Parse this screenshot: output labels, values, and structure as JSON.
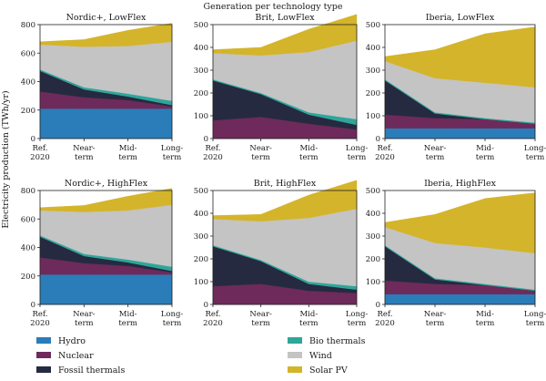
{
  "figure": {
    "title": "Generation per technology type",
    "ylabel": "Electricity production (TWh/yr)"
  },
  "categories": [
    [
      "Ref.",
      "2020"
    ],
    [
      "Near-",
      "term"
    ],
    [
      "Mid-",
      "term"
    ],
    [
      "Long-",
      "term"
    ]
  ],
  "legend": [
    {
      "name": "Hydro",
      "color": "#2a7db8"
    },
    {
      "name": "Nuclear",
      "color": "#6e2a5a"
    },
    {
      "name": "Fossil thermals",
      "color": "#252a40"
    },
    {
      "name": "Bio thermals",
      "color": "#2ea69a"
    },
    {
      "name": "Wind",
      "color": "#c4c4c4"
    },
    {
      "name": "Solar PV",
      "color": "#d4b42a"
    }
  ],
  "chart_data": [
    {
      "type": "area",
      "title": "Nordic+, LowFlex",
      "ylim": [
        0,
        800
      ],
      "yticks": [
        0,
        200,
        400,
        600,
        800
      ],
      "series": [
        {
          "name": "Hydro",
          "values": [
            210,
            210,
            210,
            210
          ]
        },
        {
          "name": "Nuclear",
          "values": [
            120,
            80,
            60,
            15
          ]
        },
        {
          "name": "Fossil thermals",
          "values": [
            145,
            55,
            25,
            10
          ]
        },
        {
          "name": "Bio thermals",
          "values": [
            10,
            15,
            20,
            30
          ]
        },
        {
          "name": "Wind",
          "values": [
            175,
            285,
            335,
            415
          ]
        },
        {
          "name": "Solar PV",
          "values": [
            20,
            50,
            110,
            130
          ]
        }
      ]
    },
    {
      "type": "area",
      "title": "Brit, LowFlex",
      "ylim": [
        0,
        500
      ],
      "yticks": [
        0,
        100,
        200,
        300,
        400,
        500
      ],
      "series": [
        {
          "name": "Hydro",
          "values": [
            0,
            0,
            0,
            0
          ]
        },
        {
          "name": "Nuclear",
          "values": [
            80,
            95,
            65,
            40
          ]
        },
        {
          "name": "Fossil thermals",
          "values": [
            175,
            100,
            40,
            20
          ]
        },
        {
          "name": "Bio thermals",
          "values": [
            5,
            5,
            10,
            25
          ]
        },
        {
          "name": "Wind",
          "values": [
            115,
            165,
            265,
            345
          ]
        },
        {
          "name": "Solar PV",
          "values": [
            15,
            35,
            100,
            115
          ]
        }
      ]
    },
    {
      "type": "area",
      "title": "Iberia, LowFlex",
      "ylim": [
        0,
        500
      ],
      "yticks": [
        0,
        100,
        200,
        300,
        400,
        500
      ],
      "series": [
        {
          "name": "Hydro",
          "values": [
            45,
            45,
            45,
            45
          ]
        },
        {
          "name": "Nuclear",
          "values": [
            60,
            45,
            40,
            20
          ]
        },
        {
          "name": "Fossil thermals",
          "values": [
            150,
            20,
            0,
            0
          ]
        },
        {
          "name": "Bio thermals",
          "values": [
            5,
            5,
            5,
            5
          ]
        },
        {
          "name": "Wind",
          "values": [
            80,
            150,
            155,
            155
          ]
        },
        {
          "name": "Solar PV",
          "values": [
            20,
            125,
            215,
            265
          ]
        }
      ]
    },
    {
      "type": "area",
      "title": "Nordic+, HighFlex",
      "ylim": [
        0,
        800
      ],
      "yticks": [
        0,
        200,
        400,
        600,
        800
      ],
      "series": [
        {
          "name": "Hydro",
          "values": [
            210,
            210,
            210,
            210
          ]
        },
        {
          "name": "Nuclear",
          "values": [
            120,
            80,
            60,
            15
          ]
        },
        {
          "name": "Fossil thermals",
          "values": [
            145,
            50,
            25,
            10
          ]
        },
        {
          "name": "Bio thermals",
          "values": [
            10,
            15,
            20,
            30
          ]
        },
        {
          "name": "Wind",
          "values": [
            175,
            295,
            345,
            435
          ]
        },
        {
          "name": "Solar PV",
          "values": [
            20,
            45,
            100,
            115
          ]
        }
      ]
    },
    {
      "type": "area",
      "title": "Brit, HighFlex",
      "ylim": [
        0,
        500
      ],
      "yticks": [
        0,
        100,
        200,
        300,
        400,
        500
      ],
      "series": [
        {
          "name": "Hydro",
          "values": [
            0,
            0,
            0,
            0
          ]
        },
        {
          "name": "Nuclear",
          "values": [
            80,
            90,
            60,
            50
          ]
        },
        {
          "name": "Fossil thermals",
          "values": [
            175,
            100,
            30,
            15
          ]
        },
        {
          "name": "Bio thermals",
          "values": [
            5,
            5,
            10,
            15
          ]
        },
        {
          "name": "Wind",
          "values": [
            115,
            170,
            280,
            340
          ]
        },
        {
          "name": "Solar PV",
          "values": [
            15,
            30,
            100,
            125
          ]
        }
      ]
    },
    {
      "type": "area",
      "title": "Iberia, HighFlex",
      "ylim": [
        0,
        500
      ],
      "yticks": [
        0,
        100,
        200,
        300,
        400,
        500
      ],
      "series": [
        {
          "name": "Hydro",
          "values": [
            45,
            45,
            45,
            45
          ]
        },
        {
          "name": "Nuclear",
          "values": [
            60,
            45,
            40,
            15
          ]
        },
        {
          "name": "Fossil thermals",
          "values": [
            150,
            20,
            0,
            0
          ]
        },
        {
          "name": "Bio thermals",
          "values": [
            5,
            5,
            5,
            5
          ]
        },
        {
          "name": "Wind",
          "values": [
            80,
            155,
            160,
            160
          ]
        },
        {
          "name": "Solar PV",
          "values": [
            20,
            125,
            215,
            265
          ]
        }
      ]
    }
  ]
}
